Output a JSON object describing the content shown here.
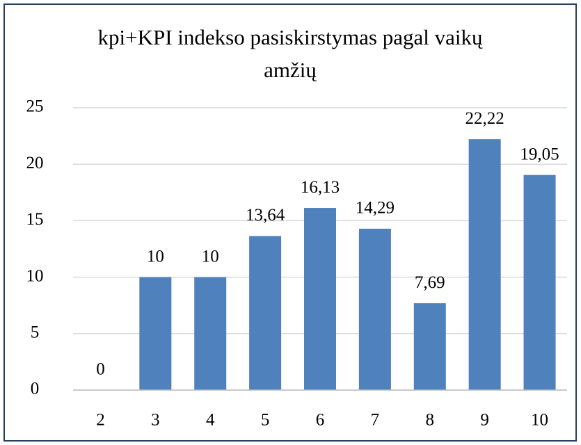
{
  "chart_data": {
    "type": "bar",
    "title": "kpi+KPI indekso pasiskirstymas pagal vaikų amžių",
    "categories": [
      "2",
      "3",
      "4",
      "5",
      "6",
      "7",
      "8",
      "9",
      "10"
    ],
    "values": [
      0,
      10,
      10,
      13.64,
      16.13,
      14.29,
      7.69,
      22.22,
      19.05
    ],
    "value_labels": [
      "0",
      "10",
      "10",
      "13,64",
      "16,13",
      "14,29",
      "7,69",
      "22,22",
      "19,05"
    ],
    "color": "#4f81bd",
    "ylim": [
      0,
      25
    ],
    "yticks": [
      0,
      5,
      10,
      15,
      20,
      25
    ],
    "grid": true
  }
}
